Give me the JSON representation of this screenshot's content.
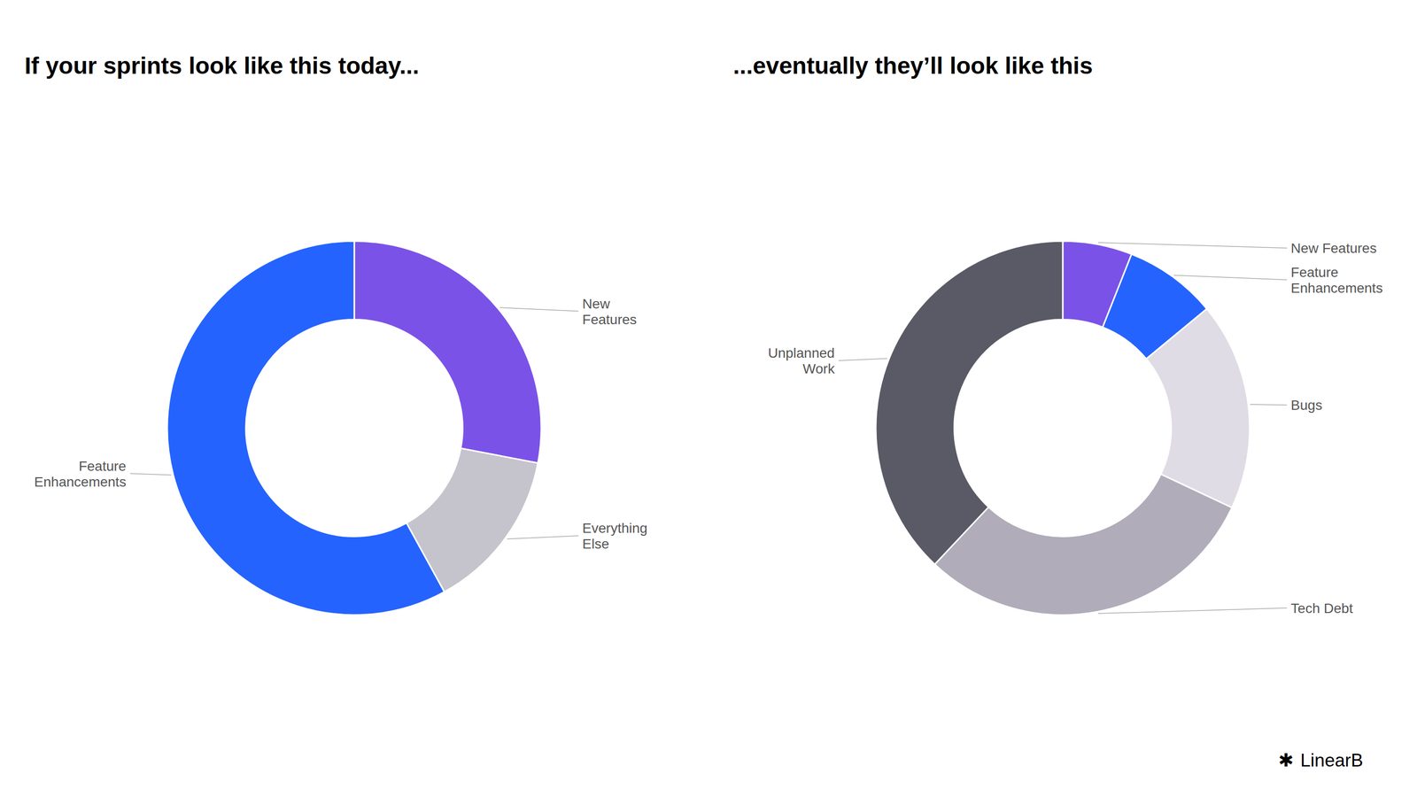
{
  "chart_data": [
    {
      "type": "donut",
      "title": "If your sprints look like this today...",
      "categories": [
        "New\nFeatures",
        "Everything\nElse",
        "Feature\nEnhancements"
      ],
      "values": [
        28,
        14,
        58
      ],
      "colors": [
        "#7B52E8",
        "#C5C3CC",
        "#2563FF"
      ]
    },
    {
      "type": "donut",
      "title": "...eventually they’ll look like this",
      "categories": [
        "New Features",
        "Feature\nEnhancements",
        "Bugs",
        "Tech Debt",
        "Unplanned\nWork"
      ],
      "values": [
        6,
        8,
        18,
        30,
        38
      ],
      "colors": [
        "#7B52E8",
        "#2563FF",
        "#E0DCE5",
        "#B0ACBA",
        "#5A5A66"
      ],
      "annotations": [
        "✱",
        "LinearB"
      ]
    }
  ]
}
